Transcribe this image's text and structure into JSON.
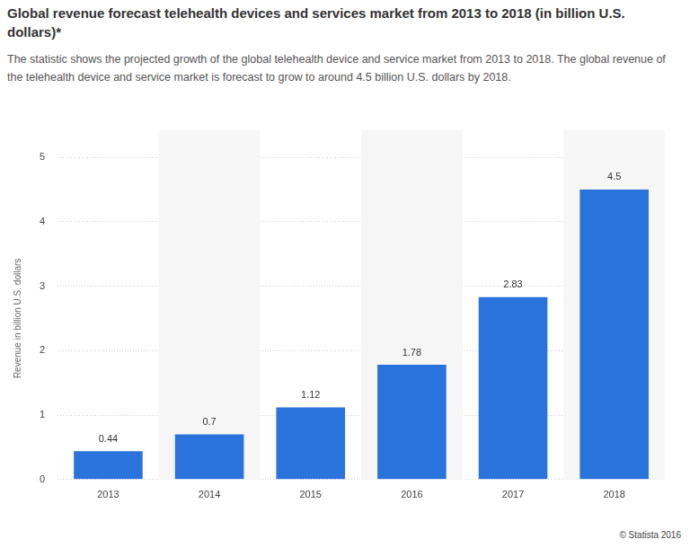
{
  "chart_data": {
    "type": "bar",
    "title": "Global revenue forecast telehealth devices and services market from 2013 to 2018 (in billion U.S. dollars)*",
    "subtitle": "The statistic shows the projected growth of the global telehealth device and service market from 2013 to 2018. The global revenue of the telehealth device and service market is forecast to grow to around 4.5 billion U.S. dollars by 2018.",
    "y_label": "Revenue in billion U.S. dollars",
    "source": "© Statista 2016",
    "categories": [
      "2013",
      "2014",
      "2015",
      "2016",
      "2017",
      "2018"
    ],
    "values": [
      0.44,
      0.7,
      1.12,
      1.78,
      2.83,
      4.5
    ],
    "color": "#2b73dc",
    "ylim": [
      0,
      5
    ],
    "yticks": [
      0,
      1,
      2,
      3,
      4,
      5
    ],
    "grid": true,
    "data_labels": true
  }
}
